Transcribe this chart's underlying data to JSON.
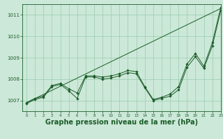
{
  "background_color": "#cce8d8",
  "grid_color": "#99ccb0",
  "line_color": "#1a5c28",
  "xlabel": "Graphe pression niveau de la mer (hPa)",
  "xlabel_fontsize": 7,
  "ylim": [
    1006.5,
    1011.5
  ],
  "xlim": [
    -0.5,
    23
  ],
  "yticks": [
    1007,
    1008,
    1009,
    1010,
    1011
  ],
  "xticks": [
    0,
    1,
    2,
    3,
    4,
    5,
    6,
    7,
    8,
    9,
    10,
    11,
    12,
    13,
    14,
    15,
    16,
    17,
    18,
    19,
    20,
    21,
    22,
    23
  ],
  "line1_x": [
    0,
    1,
    2,
    3,
    4,
    5,
    6,
    7,
    8,
    9,
    10,
    11,
    12,
    13,
    14,
    15,
    16,
    17,
    18,
    19,
    20,
    21,
    22,
    23
  ],
  "line1_y": [
    1006.85,
    1007.05,
    1007.15,
    1007.65,
    1007.75,
    1007.45,
    1007.1,
    1008.1,
    1008.1,
    1008.0,
    1008.05,
    1008.15,
    1008.3,
    1008.25,
    1007.6,
    1007.0,
    1007.1,
    1007.2,
    1007.5,
    1008.55,
    1009.05,
    1008.5,
    1009.55,
    1011.2
  ],
  "line2_x": [
    0,
    1,
    2,
    3,
    4,
    5,
    6,
    7,
    8,
    9,
    10,
    11,
    12,
    13,
    14,
    15,
    16,
    17,
    18,
    19,
    20,
    21,
    22,
    23
  ],
  "line2_y": [
    1006.9,
    1007.1,
    1007.2,
    1007.7,
    1007.8,
    1007.55,
    1007.35,
    1008.15,
    1008.15,
    1008.1,
    1008.15,
    1008.25,
    1008.4,
    1008.35,
    1007.65,
    1007.05,
    1007.15,
    1007.3,
    1007.65,
    1008.7,
    1009.2,
    1008.6,
    1009.7,
    1011.35
  ],
  "line3_x": [
    0,
    23
  ],
  "line3_y": [
    1006.9,
    1011.3
  ]
}
